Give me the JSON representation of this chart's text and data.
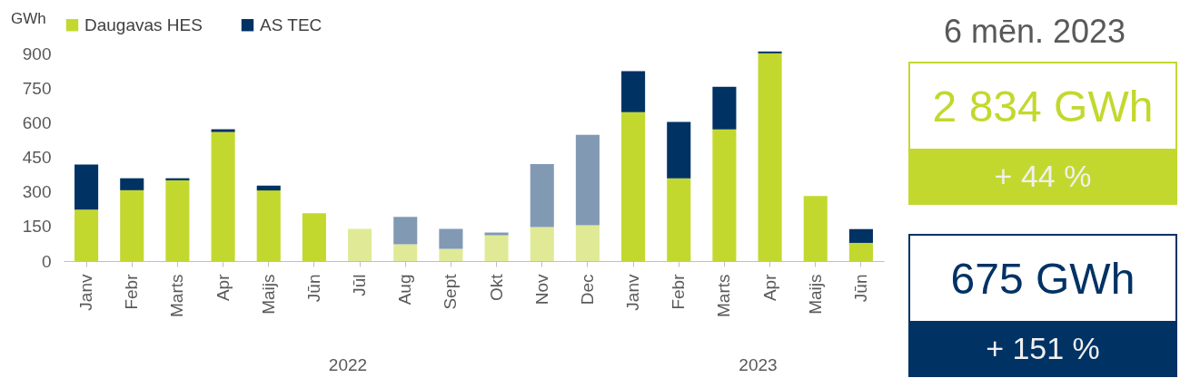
{
  "chart_data": [
    {
      "type": "bar",
      "stacked": true,
      "ylabel": "GWh",
      "legend": "top",
      "categories": [
        "Janv",
        "Febr",
        "Marts",
        "Apr",
        "Maijs",
        "Jūn",
        "Jūl",
        "Aug",
        "Sept",
        "Okt",
        "Nov",
        "Dec",
        "Janv",
        "Febr",
        "Marts",
        "Apr",
        "Maijs",
        "Jūn"
      ],
      "series": [
        {
          "name": "Daugavas HES",
          "color": "#c3d82e",
          "colors": [
            "#c3d82e",
            "#c3d82e",
            "#c3d82e",
            "#c3d82e",
            "#c3d82e",
            "#c3d82e",
            "#e0ea96",
            "#e0ea96",
            "#e0ea96",
            "#e0ea96",
            "#e0ea96",
            "#e0ea96",
            "#c3d82e",
            "#c3d82e",
            "#c3d82e",
            "#c3d82e",
            "#c3d82e",
            "#c3d82e"
          ],
          "values": [
            224,
            308,
            351,
            561,
            307,
            208,
            140,
            73,
            53,
            112,
            148,
            156,
            647,
            360,
            572,
            903,
            283,
            79
          ]
        },
        {
          "name": "AS TEC",
          "color": "#003264",
          "colors": [
            "#003264",
            "#003264",
            "#003264",
            "#003264",
            "#003264",
            "#003264",
            "#8299b4",
            "#8299b4",
            "#8299b4",
            "#8299b4",
            "#8299b4",
            "#8299b4",
            "#003264",
            "#003264",
            "#003264",
            "#003264",
            "#003264",
            "#003264"
          ],
          "values": [
            196,
            52,
            9,
            12,
            21,
            null,
            null,
            119,
            87,
            12,
            274,
            393,
            179,
            245,
            186,
            8,
            null,
            60
          ]
        }
      ],
      "ylim": [
        0,
        930
      ],
      "yticks": [
        0,
        150,
        300,
        450,
        600,
        750,
        900
      ],
      "grid": false,
      "annotations": [
        "2022",
        "2023"
      ]
    },
    {
      "type": "other",
      "title": "6 mēn. 2023",
      "colors": [
        "#c3d82e",
        "#003264"
      ],
      "annotations": [
        "2 834 GWh",
        "+ 44 %",
        "675 GWh",
        "+ 151 %"
      ]
    }
  ]
}
